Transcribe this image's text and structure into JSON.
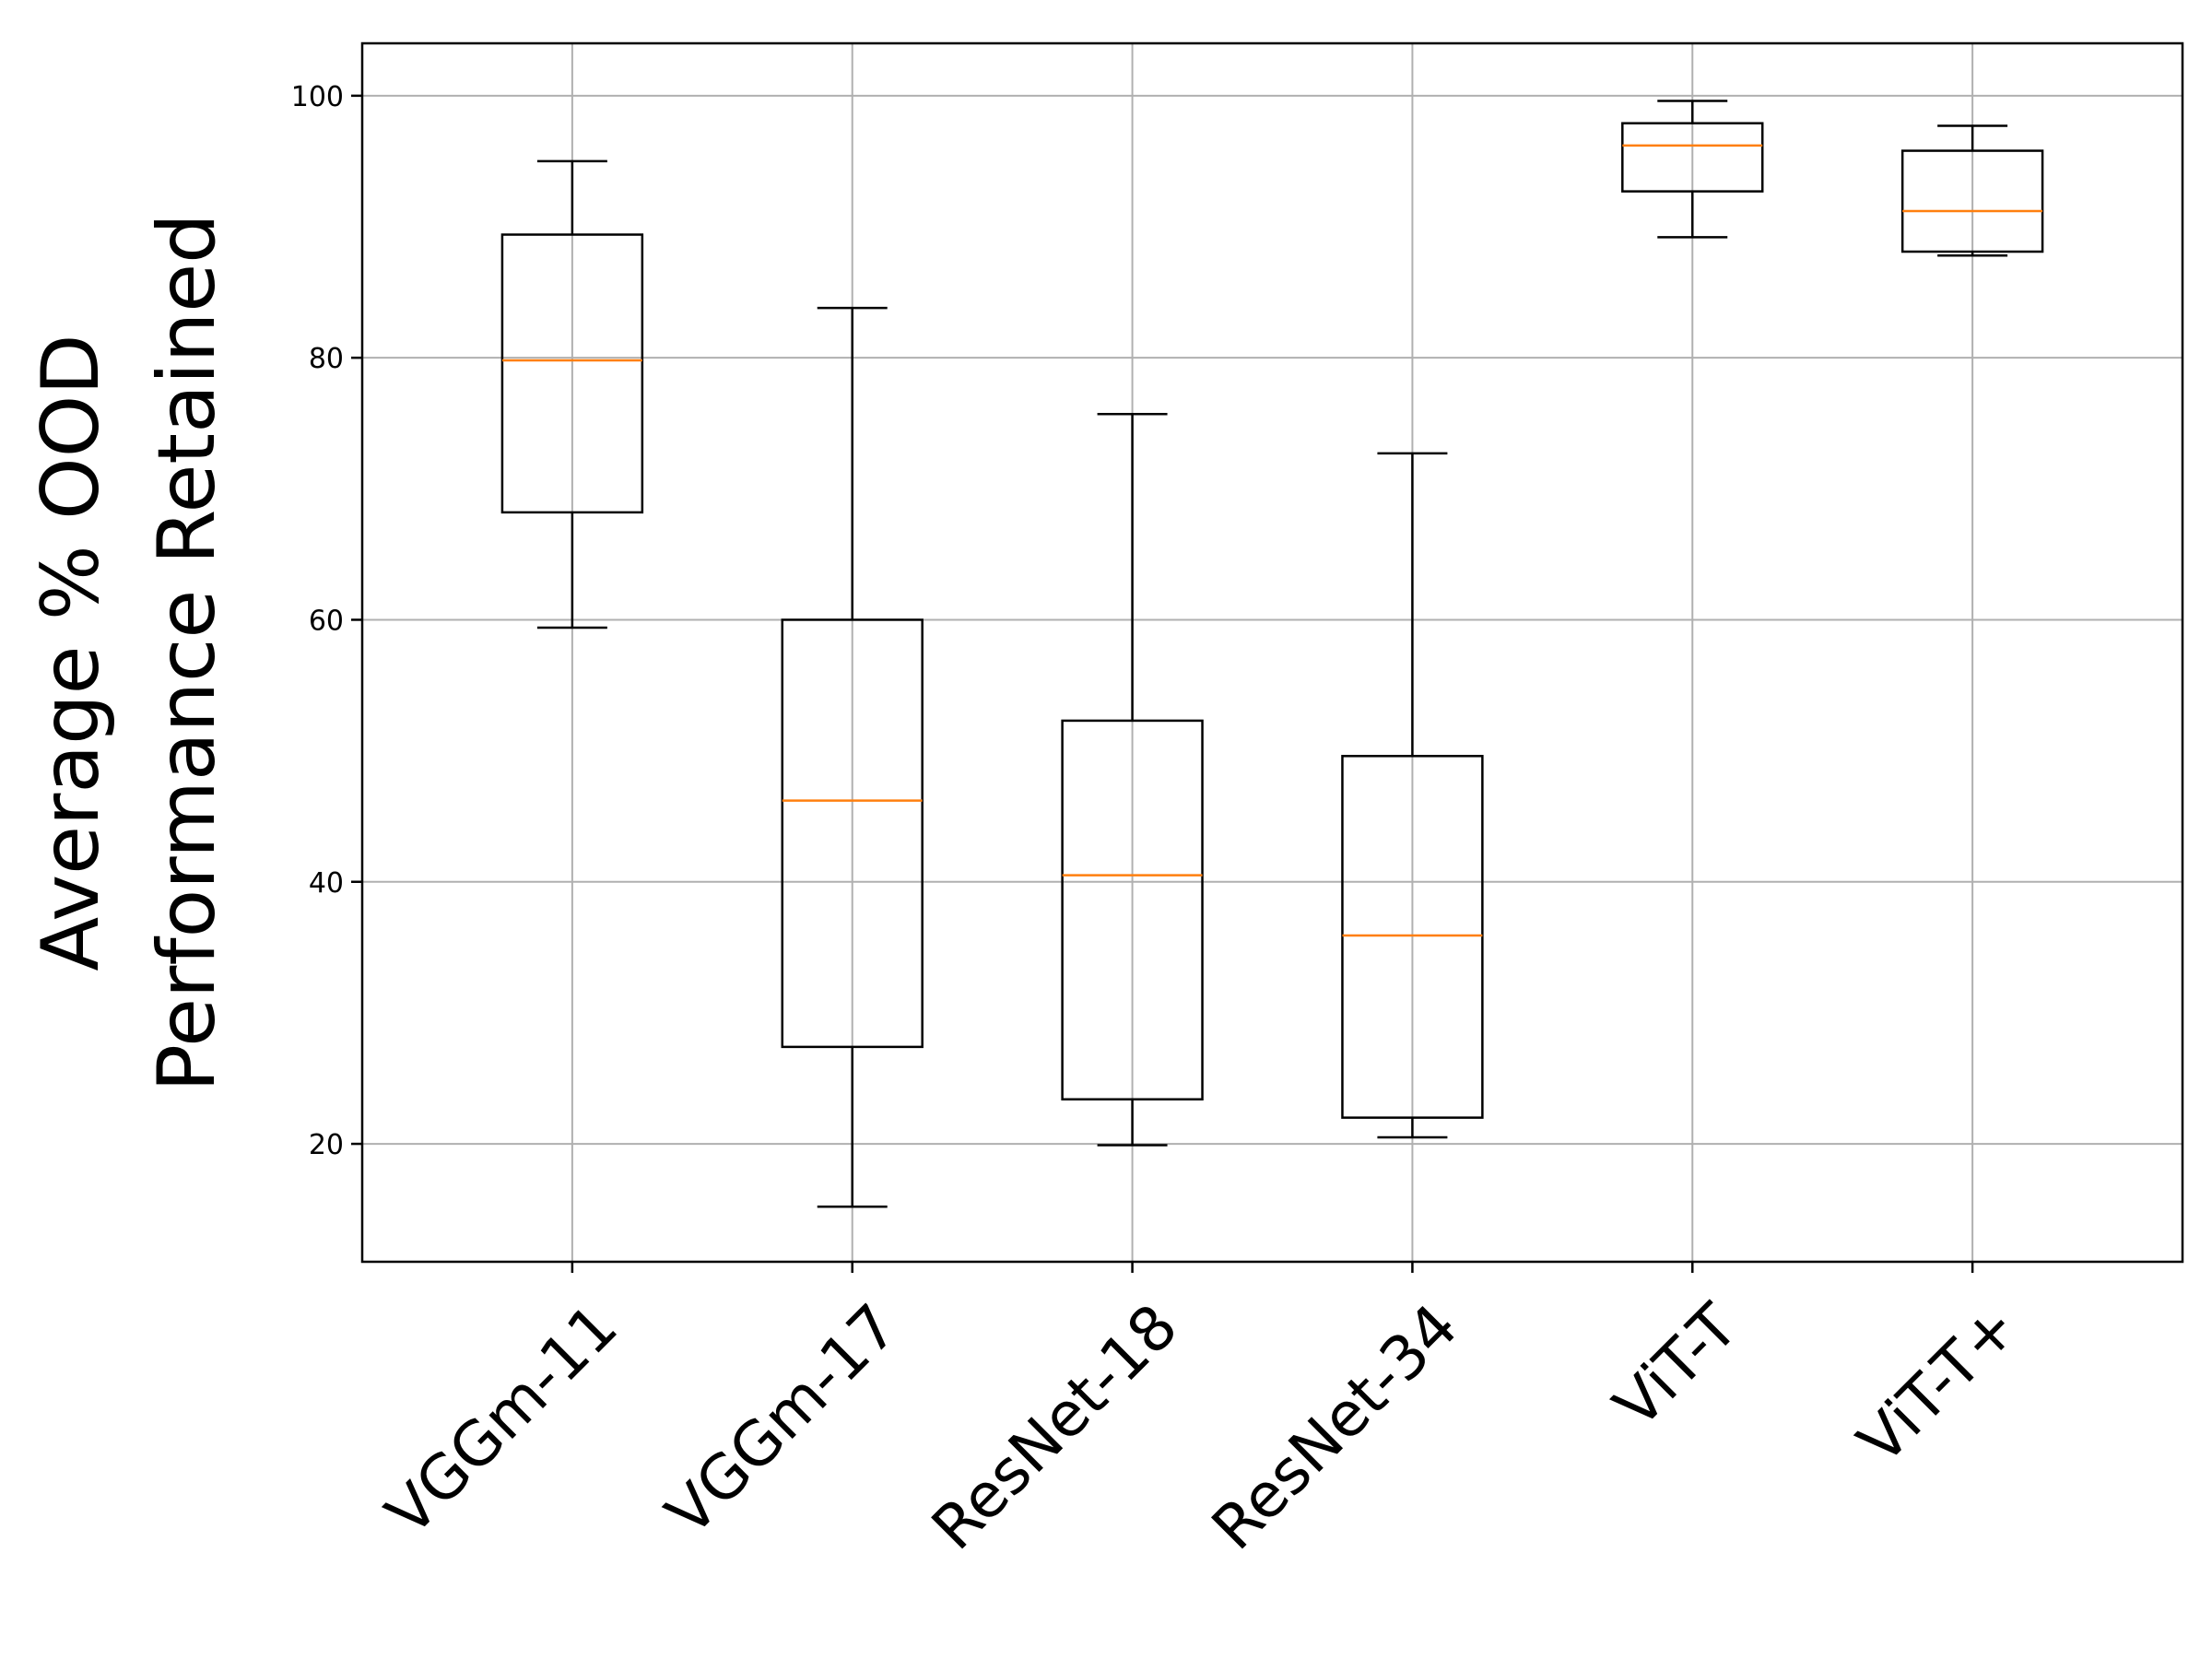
{
  "chart_data": {
    "type": "box",
    "title": "",
    "xlabel": "",
    "ylabel_lines": [
      "Average % OOD",
      "Performance Retained"
    ],
    "ylim": [
      11,
      104
    ],
    "yticks": [
      20,
      40,
      60,
      80,
      100
    ],
    "grid": true,
    "categories": [
      "VGGm-11",
      "VGGm-17",
      "ResNet-18",
      "ResNet-34",
      "ViT-T",
      "ViT-T+"
    ],
    "boxes": [
      {
        "label": "VGGm-11",
        "whisker_low": 59.4,
        "q1": 68.2,
        "median": 79.8,
        "q3": 89.4,
        "whisker_high": 95.0
      },
      {
        "label": "VGGm-17",
        "whisker_low": 15.2,
        "q1": 27.4,
        "median": 46.2,
        "q3": 60.0,
        "whisker_high": 83.8
      },
      {
        "label": "ResNet-18",
        "whisker_low": 19.9,
        "q1": 23.4,
        "median": 40.5,
        "q3": 52.3,
        "whisker_high": 75.7
      },
      {
        "label": "ResNet-34",
        "whisker_low": 20.5,
        "q1": 22.0,
        "median": 35.9,
        "q3": 49.6,
        "whisker_high": 72.7
      },
      {
        "label": "ViT-T",
        "whisker_low": 89.2,
        "q1": 92.7,
        "median": 96.2,
        "q3": 97.9,
        "whisker_high": 99.6
      },
      {
        "label": "ViT-T+",
        "whisker_low": 87.8,
        "q1": 88.1,
        "median": 91.2,
        "q3": 95.8,
        "whisker_high": 97.7
      }
    ],
    "colors": {
      "box": "#000000",
      "median": "#ff7f0e",
      "grid": "#b0b0b0"
    }
  }
}
